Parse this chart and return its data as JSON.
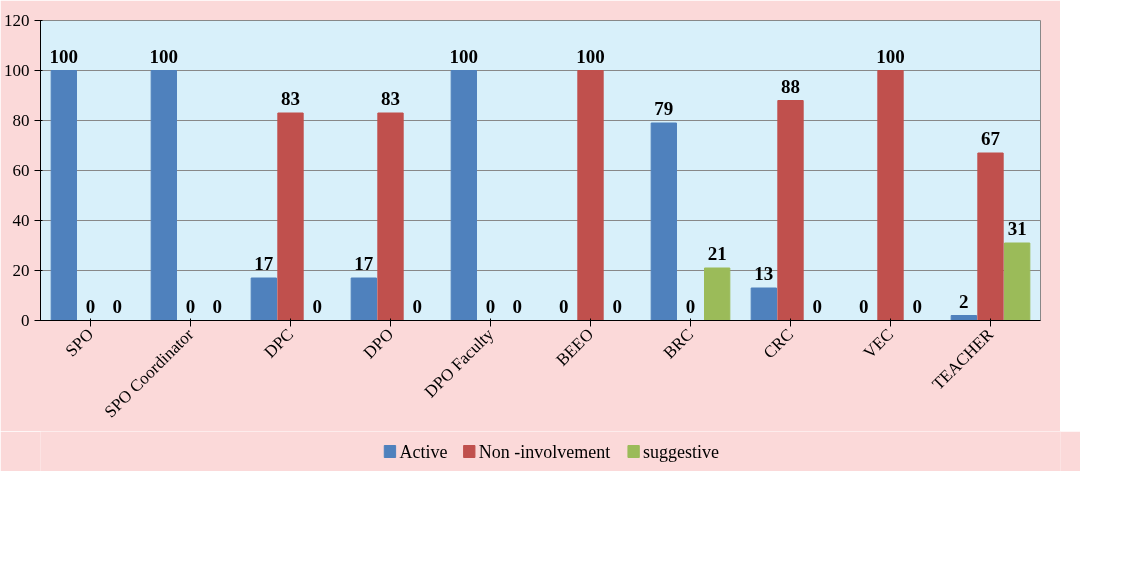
{
  "chart_data": {
    "type": "bar",
    "categories": [
      "SPO",
      "SPO Coordinator",
      "DPC",
      "DPO",
      "DPO Faculty",
      "BEEO",
      "BRC",
      "CRC",
      "VEC",
      "TEACHER"
    ],
    "series": [
      {
        "name": "Active",
        "color": "#4f81bd",
        "values": [
          100,
          100,
          17,
          17,
          100,
          0,
          79,
          13,
          0,
          2
        ]
      },
      {
        "name": "Non -involvement",
        "color": "#c0504d",
        "values": [
          0,
          0,
          83,
          83,
          0,
          100,
          0,
          88,
          100,
          67
        ]
      },
      {
        "name": "suggestive",
        "color": "#9bbb59",
        "values": [
          0,
          0,
          0,
          0,
          0,
          0,
          21,
          0,
          0,
          31
        ]
      }
    ],
    "ylim": [
      0,
      120
    ],
    "yticks": [
      0,
      20,
      40,
      60,
      80,
      100,
      120
    ],
    "grid": "y",
    "legend": "bottom",
    "data_labels": true
  }
}
